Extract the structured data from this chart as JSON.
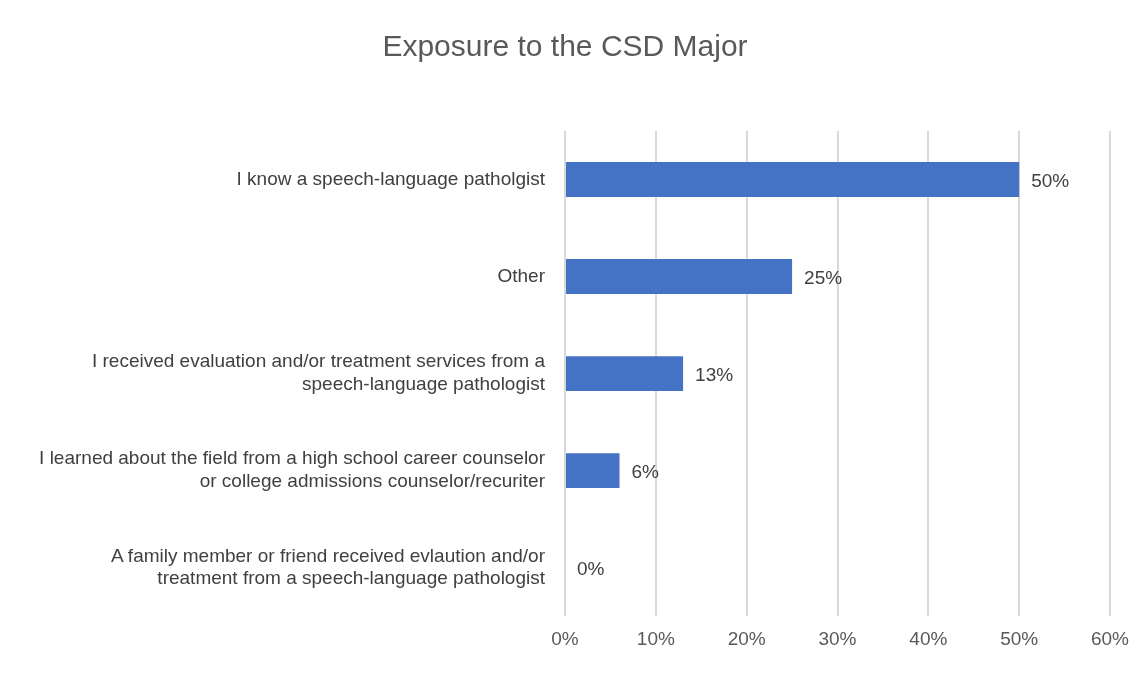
{
  "chart_data": {
    "type": "bar",
    "orientation": "horizontal",
    "title": "Exposure to the CSD Major",
    "categories": [
      "I know a speech-language patholgist",
      "Other",
      "I received evaluation and/or treatment services from a speech-language pathologist",
      "I learned about the field from a high school career counselor or college admissions counselor/recuriter",
      "A family member or friend received evlaution and/or treatment from a speech-language pathologist"
    ],
    "values": [
      50,
      25,
      13,
      6,
      0
    ],
    "value_labels": [
      "50%",
      "25%",
      "13%",
      "6%",
      "0%"
    ],
    "color": "#4472c4",
    "xlim": [
      0,
      60
    ],
    "xticks": [
      {
        "value": 0,
        "label": "0%"
      },
      {
        "value": 10,
        "label": "10%"
      },
      {
        "value": 20,
        "label": "20%"
      },
      {
        "value": 30,
        "label": "30%"
      },
      {
        "value": 40,
        "label": "40%"
      },
      {
        "value": 50,
        "label": "50%"
      },
      {
        "value": 60,
        "label": "60%"
      }
    ],
    "grid": "x",
    "legend": false
  }
}
